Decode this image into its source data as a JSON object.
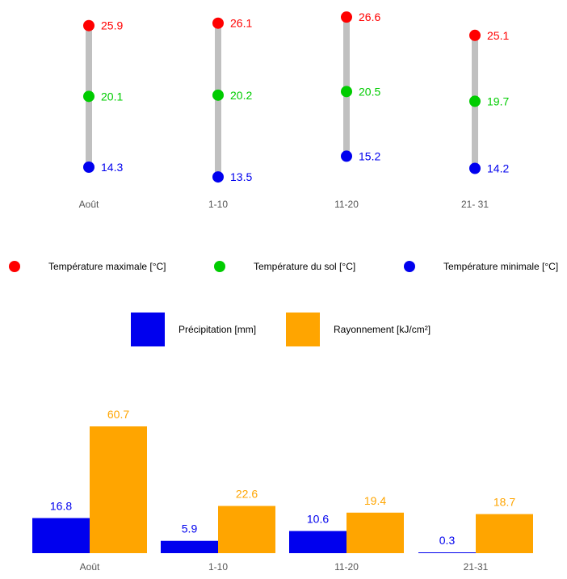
{
  "colors": {
    "max": "#ff0000",
    "soil": "#00cc00",
    "min": "#0000ee",
    "range_bar": "#c0c0c0",
    "precip": "#0000ee",
    "radiation": "#ffa500",
    "axis_text": "#555555"
  },
  "chart_data": [
    {
      "type": "range-dot",
      "categories": [
        "Août",
        "1-10",
        "11-20",
        "21- 31"
      ],
      "series": [
        {
          "name": "Température maximale [°C]",
          "values": [
            25.9,
            26.1,
            26.6,
            25.1
          ]
        },
        {
          "name": "Température du sol [°C]",
          "values": [
            20.1,
            20.2,
            20.5,
            19.7
          ]
        },
        {
          "name": "Température minimale [°C]",
          "values": [
            14.3,
            13.5,
            15.2,
            14.2
          ]
        }
      ],
      "legend_position": "bottom"
    },
    {
      "type": "bar",
      "categories": [
        "Août",
        "1-10",
        "11-20",
        "21-31"
      ],
      "series": [
        {
          "name": "Précipitation [mm]",
          "values": [
            16.8,
            5.9,
            10.6,
            0.3
          ]
        },
        {
          "name": "Rayonnement [kJ/cm²]",
          "values": [
            60.7,
            22.6,
            19.4,
            18.7
          ]
        }
      ],
      "legend_position": "top"
    }
  ]
}
